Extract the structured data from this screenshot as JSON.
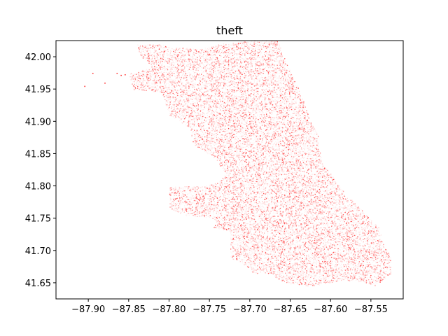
{
  "chart_data": {
    "type": "scatter",
    "title": "theft",
    "xlabel": "",
    "ylabel": "",
    "xlim": [
      -87.94,
      -87.51
    ],
    "ylim": [
      41.625,
      42.025
    ],
    "xticks": [
      -87.9,
      -87.85,
      -87.8,
      -87.75,
      -87.7,
      -87.65,
      -87.6,
      -87.55
    ],
    "xtick_labels": [
      "−87.90",
      "−87.85",
      "−87.80",
      "−87.75",
      "−87.70",
      "−87.65",
      "−87.60",
      "−87.55"
    ],
    "yticks": [
      41.65,
      41.7,
      41.75,
      41.8,
      41.85,
      41.9,
      41.95,
      42.0
    ],
    "ytick_labels": [
      "41.65",
      "41.70",
      "41.75",
      "41.80",
      "41.85",
      "41.90",
      "41.95",
      "42.00"
    ],
    "grid": false,
    "marker_color": "#ff0000",
    "region_outline": [
      [
        -87.84,
        42.02
      ],
      [
        -87.81,
        42.02
      ],
      [
        -87.8,
        42.015
      ],
      [
        -87.76,
        42.013
      ],
      [
        -87.735,
        42.02
      ],
      [
        -87.7,
        42.025
      ],
      [
        -87.665,
        42.025
      ],
      [
        -87.66,
        42.005
      ],
      [
        -87.645,
        41.965
      ],
      [
        -87.635,
        41.935
      ],
      [
        -87.625,
        41.9
      ],
      [
        -87.615,
        41.88
      ],
      [
        -87.615,
        41.86
      ],
      [
        -87.61,
        41.835
      ],
      [
        -87.595,
        41.81
      ],
      [
        -87.58,
        41.785
      ],
      [
        -87.56,
        41.76
      ],
      [
        -87.54,
        41.735
      ],
      [
        -87.535,
        41.71
      ],
      [
        -87.525,
        41.69
      ],
      [
        -87.525,
        41.665
      ],
      [
        -87.545,
        41.645
      ],
      [
        -87.56,
        41.652
      ],
      [
        -87.585,
        41.655
      ],
      [
        -87.6,
        41.65
      ],
      [
        -87.625,
        41.645
      ],
      [
        -87.645,
        41.648
      ],
      [
        -87.66,
        41.652
      ],
      [
        -87.675,
        41.665
      ],
      [
        -87.695,
        41.665
      ],
      [
        -87.71,
        41.682
      ],
      [
        -87.725,
        41.688
      ],
      [
        -87.725,
        41.73
      ],
      [
        -87.745,
        41.735
      ],
      [
        -87.745,
        41.75
      ],
      [
        -87.78,
        41.755
      ],
      [
        -87.8,
        41.765
      ],
      [
        -87.8,
        41.8
      ],
      [
        -87.76,
        41.8
      ],
      [
        -87.74,
        41.805
      ],
      [
        -87.73,
        41.82
      ],
      [
        -87.745,
        41.845
      ],
      [
        -87.77,
        41.865
      ],
      [
        -87.775,
        41.89
      ],
      [
        -87.8,
        41.91
      ],
      [
        -87.81,
        41.945
      ],
      [
        -87.845,
        41.95
      ],
      [
        -87.85,
        41.975
      ],
      [
        -87.82,
        41.985
      ],
      [
        -87.835,
        42.0
      ]
    ],
    "outlier_points": [
      [
        -87.905,
        41.955
      ],
      [
        -87.895,
        41.975
      ],
      [
        -87.88,
        41.96
      ],
      [
        -87.865,
        41.975
      ],
      [
        -87.86,
        41.972
      ],
      [
        -87.855,
        41.973
      ]
    ]
  }
}
